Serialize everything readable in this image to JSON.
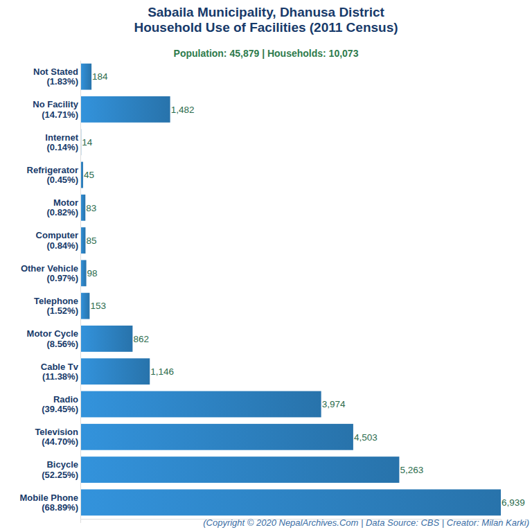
{
  "chart_data": {
    "type": "bar",
    "orientation": "horizontal",
    "title": "Sabaila Municipality, Dhanusa District\nHousehold Use of Facilities (2011 Census)",
    "subtitle": "Population: 45,879 | Households: 10,073",
    "annotations": [
      "(Copyright © 2020 NepalArchives.Com | Data Source: CBS | Creator: Milan Karki)"
    ],
    "categories": [
      "Not Stated\n(1.83%)",
      "No Facility\n(14.71%)",
      "Internet\n(0.14%)",
      "Refrigerator\n(0.45%)",
      "Motor\n(0.82%)",
      "Computer\n(0.84%)",
      "Other Vehicle\n(0.97%)",
      "Telephone\n(1.52%)",
      "Motor Cycle\n(8.56%)",
      "Cable Tv\n(11.38%)",
      "Radio\n(39.45%)",
      "Television\n(44.70%)",
      "Bicycle\n(52.25%)",
      "Mobile Phone\n(68.89%)"
    ],
    "values": [
      184,
      1482,
      14,
      45,
      83,
      85,
      98,
      153,
      862,
      1146,
      3974,
      4503,
      5263,
      6939
    ],
    "value_labels": [
      "184",
      "1,482",
      "14",
      "45",
      "83",
      "85",
      "98",
      "153",
      "862",
      "1,146",
      "3,974",
      "4,503",
      "5,263",
      "6,939"
    ],
    "data_labels": true,
    "color": "#2d82c2",
    "xlim": [
      0,
      6939
    ],
    "xticks": [],
    "tick_labels": "y",
    "grid": false
  }
}
